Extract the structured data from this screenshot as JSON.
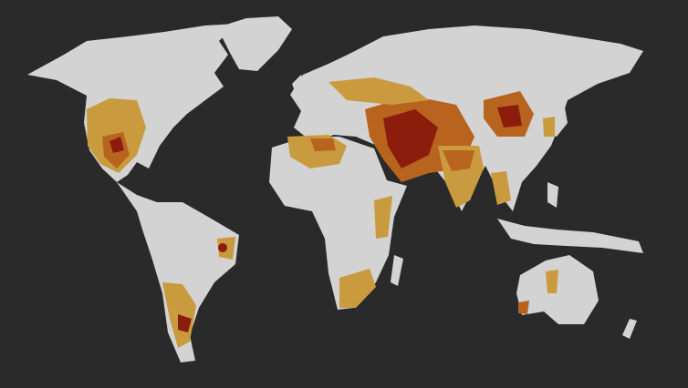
{
  "map": {
    "background_color": "#2a2a2a",
    "land_color": "#d3d3d3",
    "stress_colors": {
      "moderate": "#c99a3e",
      "high": "#b8641f",
      "extreme": "#8c1c0c"
    }
  }
}
